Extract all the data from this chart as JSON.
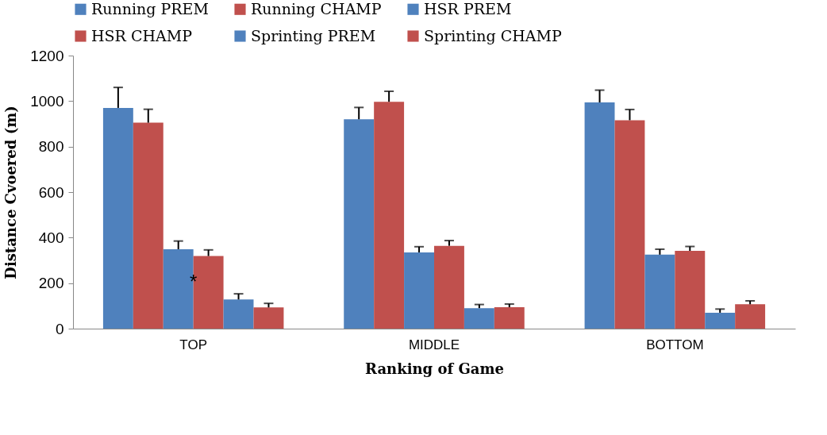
{
  "chart_data": {
    "type": "bar",
    "xlabel": "Ranking of Game",
    "ylabel": "Distance Cvoered (m)",
    "categories": [
      "TOP",
      "MIDDLE",
      "BOTTOM"
    ],
    "series": [
      {
        "name": "Running PREM",
        "color": "#4f81bd",
        "values": [
          970,
          920,
          994
        ],
        "errors": [
          [
            970,
            1060
          ],
          [
            920,
            972
          ],
          [
            994,
            1048
          ]
        ]
      },
      {
        "name": "Running CHAMP",
        "color": "#c0504d",
        "values": [
          905,
          997,
          916
        ],
        "errors": [
          [
            905,
            964
          ],
          [
            997,
            1043
          ],
          [
            916,
            963
          ]
        ]
      },
      {
        "name": "HSR PREM",
        "color": "#4f81bd",
        "values": [
          349,
          335,
          325
        ],
        "errors": [
          [
            349,
            385
          ],
          [
            335,
            360
          ],
          [
            325,
            349
          ]
        ]
      },
      {
        "name": "HSR CHAMP",
        "color": "#c0504d",
        "values": [
          319,
          364,
          342
        ],
        "errors": [
          [
            319,
            346
          ],
          [
            364,
            387
          ],
          [
            342,
            361
          ]
        ]
      },
      {
        "name": "Sprinting PREM",
        "color": "#4f81bd",
        "values": [
          128,
          90,
          70
        ],
        "errors": [
          [
            128,
            153
          ],
          [
            90,
            106
          ],
          [
            70,
            86
          ]
        ]
      },
      {
        "name": "Sprinting CHAMP",
        "color": "#c0504d",
        "values": [
          93,
          94,
          107
        ],
        "errors": [
          [
            93,
            111
          ],
          [
            94,
            108
          ],
          [
            107,
            122
          ]
        ]
      }
    ],
    "ylim": [
      0,
      1200
    ],
    "yticks": [
      0,
      200,
      400,
      600,
      800,
      1000,
      1200
    ],
    "grid": false,
    "legend": "top",
    "annotations": [
      {
        "text": "*",
        "x": "TOP",
        "y": 224
      }
    ]
  }
}
